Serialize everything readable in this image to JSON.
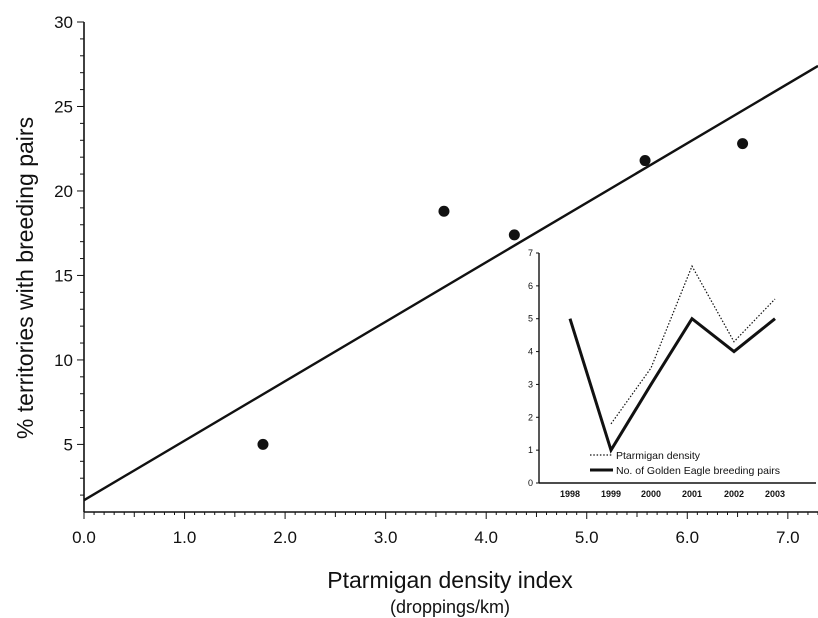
{
  "chart_data": [
    {
      "type": "scatter",
      "xlabel": "Ptarmigan density index",
      "xlabel_sub": "(droppings/km)",
      "ylabel": "% territories with breeding pairs",
      "xlim": [
        0,
        7.3
      ],
      "ylim": [
        1,
        30
      ],
      "xticks": [
        "0.0",
        "1.0",
        "2.0",
        "3.0",
        "4.0",
        "5.0",
        "6.0",
        "7.0"
      ],
      "yticks": [
        "5",
        "10",
        "15",
        "20",
        "25",
        "30"
      ],
      "points": [
        {
          "x": 1.78,
          "y": 5.0
        },
        {
          "x": 3.58,
          "y": 18.8
        },
        {
          "x": 4.28,
          "y": 17.4
        },
        {
          "x": 5.58,
          "y": 21.8
        },
        {
          "x": 6.55,
          "y": 22.8
        }
      ],
      "regression_line": {
        "x": [
          0,
          7.3
        ],
        "y": [
          1.7,
          27.4
        ]
      },
      "grid": false
    },
    {
      "type": "line",
      "categories": [
        "1998",
        "1999",
        "2000",
        "2001",
        "2002",
        "2003"
      ],
      "ylim": [
        0,
        7
      ],
      "yticks": [
        "0",
        "1",
        "2",
        "3",
        "4",
        "5",
        "6",
        "7"
      ],
      "series": [
        {
          "name": "Ptarmigan density",
          "style": "dotted",
          "values": [
            null,
            1.8,
            3.5,
            6.6,
            4.3,
            5.6
          ]
        },
        {
          "name": "No. of Golden Eagle breeding pairs",
          "style": "solid",
          "values": [
            5,
            1,
            3,
            5,
            4,
            5
          ]
        }
      ],
      "legend_position": "bottom-left"
    }
  ]
}
